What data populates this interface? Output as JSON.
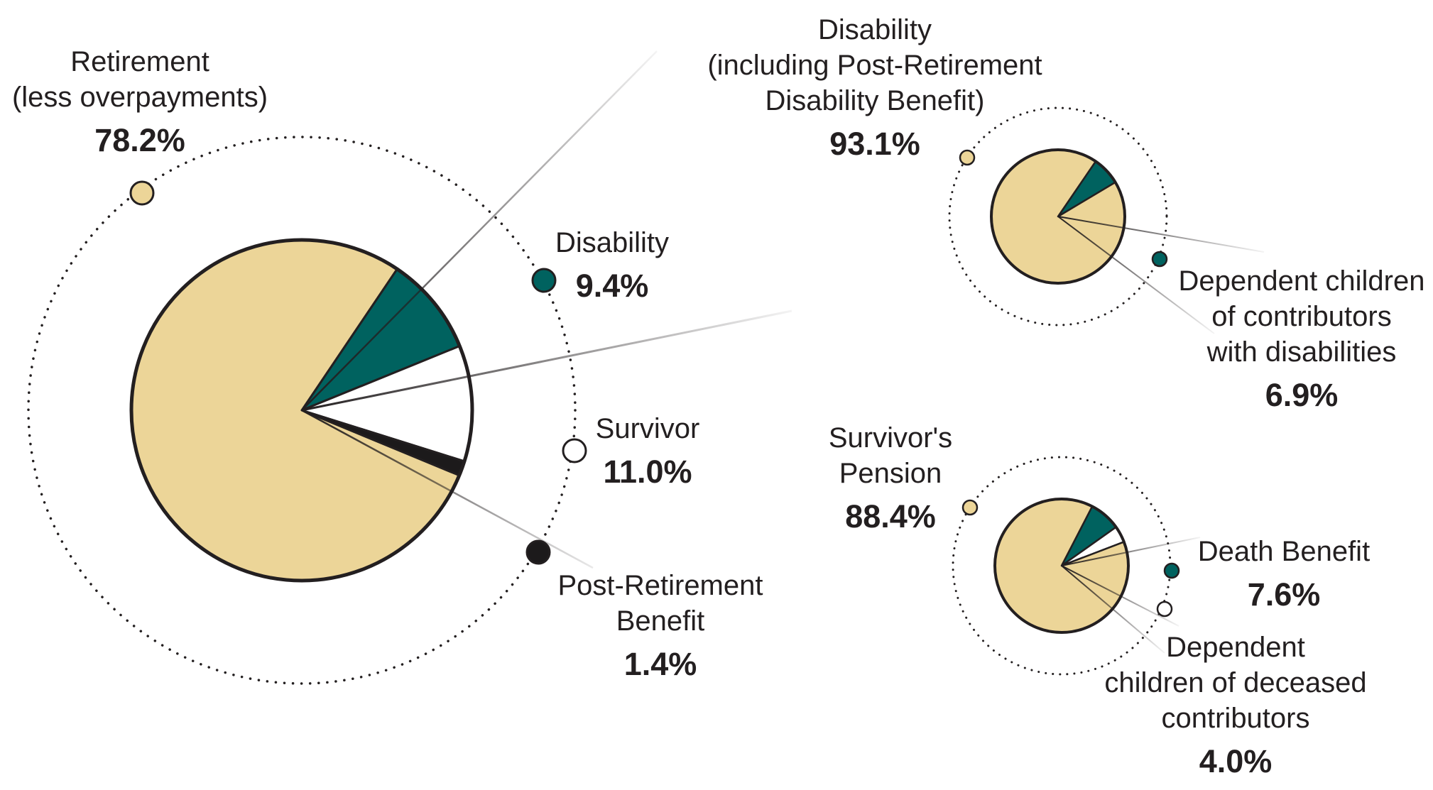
{
  "colors": {
    "retirement": "#ecd598",
    "disability": "#00625f",
    "survivor": "#ffffff",
    "post_retirement": "#1c1a1b",
    "outline": "#231f20"
  },
  "chart_data": [
    {
      "type": "pie",
      "slices": [
        {
          "label": "Retirement (less overpayments)",
          "label_lines": [
            "Retirement",
            "(less overpayments)"
          ],
          "value": 78.2,
          "value_text": "78.2%",
          "color": "#ecd598"
        },
        {
          "label": "Disability",
          "label_lines": [
            "Disability"
          ],
          "value": 9.4,
          "value_text": "9.4%",
          "color": "#00625f"
        },
        {
          "label": "Survivor",
          "label_lines": [
            "Survivor"
          ],
          "value": 11.0,
          "value_text": "11.0%",
          "color": "#ffffff"
        },
        {
          "label": "Post-Retirement Benefit",
          "label_lines": [
            "Post-Retirement",
            "Benefit"
          ],
          "value": 1.4,
          "value_text": "1.4%",
          "color": "#1c1a1b"
        }
      ]
    },
    {
      "type": "pie",
      "slices": [
        {
          "label": "Disability (including Post-Retirement Disability Benefit)",
          "label_lines": [
            "Disability",
            "(including Post-Retirement",
            "Disability Benefit)"
          ],
          "value": 93.1,
          "value_text": "93.1%",
          "color": "#ecd598"
        },
        {
          "label": "Dependent children of contributors with disabilities",
          "label_lines": [
            "Dependent children",
            "of contributors",
            "with disabilities"
          ],
          "value": 6.9,
          "value_text": "6.9%",
          "color": "#00625f"
        }
      ]
    },
    {
      "type": "pie",
      "slices": [
        {
          "label": "Survivor's Pension",
          "label_lines": [
            "Survivor's",
            "Pension"
          ],
          "value": 88.4,
          "value_text": "88.4%",
          "color": "#ecd598"
        },
        {
          "label": "Death Benefit",
          "label_lines": [
            "Death Benefit"
          ],
          "value": 7.6,
          "value_text": "7.6%",
          "color": "#00625f"
        },
        {
          "label": "Dependent children of deceased contributors",
          "label_lines": [
            "Dependent",
            "children of deceased",
            "contributors"
          ],
          "value": 4.0,
          "value_text": "4.0%",
          "color": "#ffffff"
        }
      ]
    }
  ]
}
